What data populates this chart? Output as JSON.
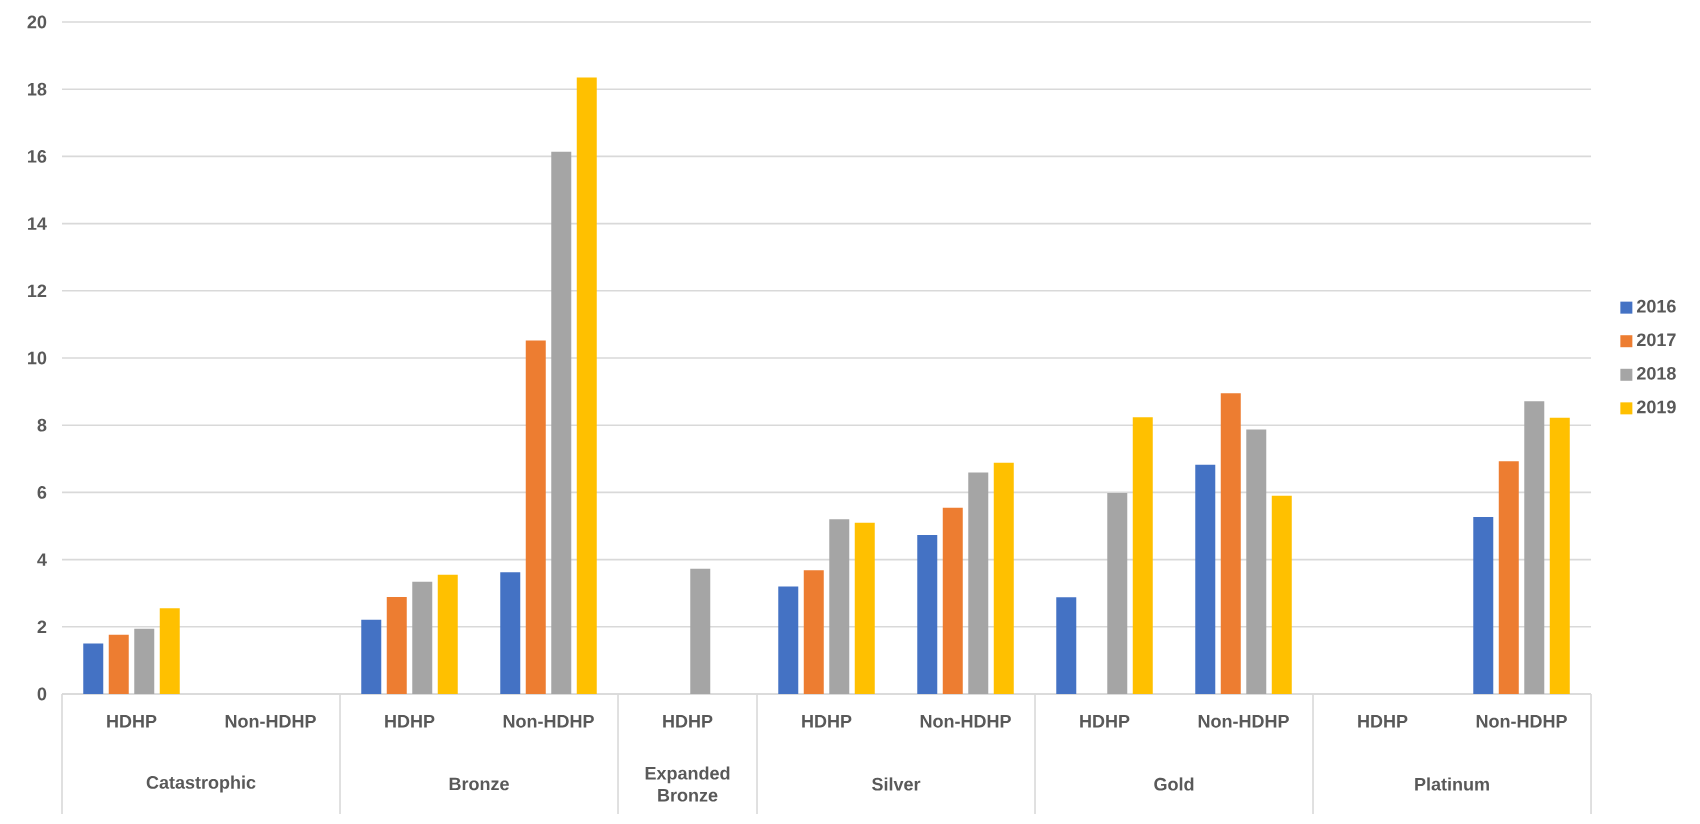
{
  "chart_data": {
    "type": "bar",
    "categories": [
      "HDHP",
      "Non-HDHP",
      "HDHP",
      "Non-HDHP",
      "HDHP",
      "HDHP",
      "Non-HDHP",
      "HDHP",
      "Non-HDHP",
      "HDHP",
      "Non-HDHP"
    ],
    "annotations": [
      "Catastrophic",
      "Bronze",
      "Expanded Bronze",
      "Silver",
      "Gold",
      "Platinum"
    ],
    "series": [
      {
        "name": "2016",
        "color": "#4472c4",
        "values": [
          1.5,
          null,
          2.21,
          3.62,
          null,
          3.2,
          4.73,
          2.88,
          6.82,
          null,
          5.27
        ]
      },
      {
        "name": "2017",
        "color": "#ed7d31",
        "values": [
          1.76,
          null,
          2.89,
          10.52,
          null,
          3.68,
          5.54,
          null,
          8.95,
          null,
          6.93
        ]
      },
      {
        "name": "2018",
        "color": "#a5a5a5",
        "values": [
          1.94,
          null,
          3.34,
          16.14,
          3.73,
          5.2,
          6.59,
          5.98,
          7.87,
          null,
          8.71
        ]
      },
      {
        "name": "2019",
        "color": "#ffc000",
        "values": [
          2.55,
          null,
          3.55,
          18.35,
          null,
          5.1,
          6.88,
          8.24,
          5.9,
          null,
          8.22
        ]
      }
    ],
    "ylim": [
      0,
      20
    ],
    "yticks": [
      0,
      2,
      4,
      6,
      8,
      10,
      12,
      14,
      16,
      18,
      20
    ],
    "grid": "y",
    "legend": "right"
  }
}
